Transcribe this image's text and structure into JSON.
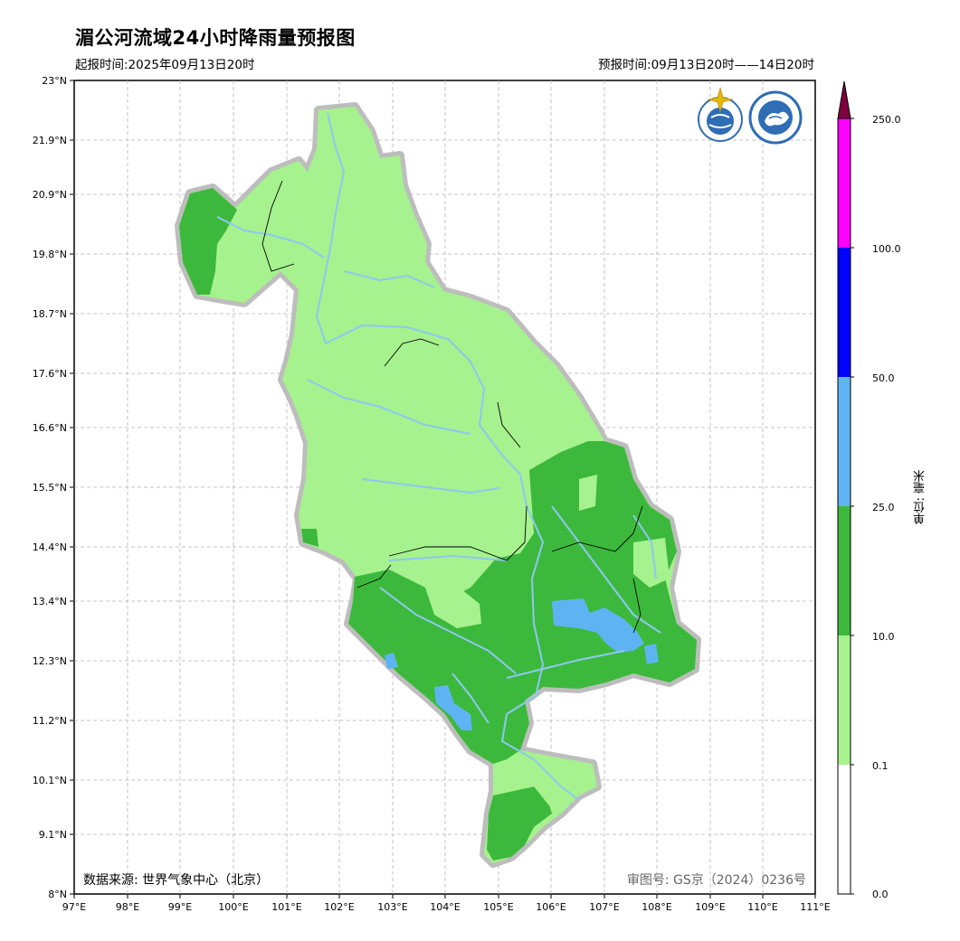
{
  "title": "湄公河流域24小时降雨量预报图",
  "issue_time": "起报时间:2025年09月13日20时",
  "forecast_period": "预报时间:09月13日20时——14日20时",
  "data_source": "数据来源: 世界气象中心（北京）",
  "approval_number": "审图号: GS京（2024）0236号",
  "unit_label": "单位: 毫米",
  "lat_labels": [
    "23°N",
    "21.9°N",
    "20.9°N",
    "19.8°N",
    "18.7°N",
    "17.6°N",
    "16.6°N",
    "15.5°N",
    "14.4°N",
    "13.4°N",
    "12.3°N",
    "11.2°N",
    "10.1°N",
    "9.1°N",
    "8°N"
  ],
  "lon_labels": [
    "97°E",
    "98°E",
    "99°E",
    "100°E",
    "101°E",
    "102°E",
    "103°E",
    "104°E",
    "105°E",
    "106°E",
    "107°E",
    "108°E",
    "109°E",
    "110°E",
    "111°E"
  ],
  "legend": {
    "labels": [
      "250.0",
      "100.0",
      "50.0",
      "25.0",
      "10.0",
      "0.1",
      "0.0"
    ],
    "colors": [
      "#800040",
      "#ff00ff",
      "#0000ff",
      "#5eb4f2",
      "#3cb93c",
      "#a6f28e",
      "#ffffff"
    ]
  },
  "logos": [
    "wmo-logo",
    "cma-logo"
  ]
}
